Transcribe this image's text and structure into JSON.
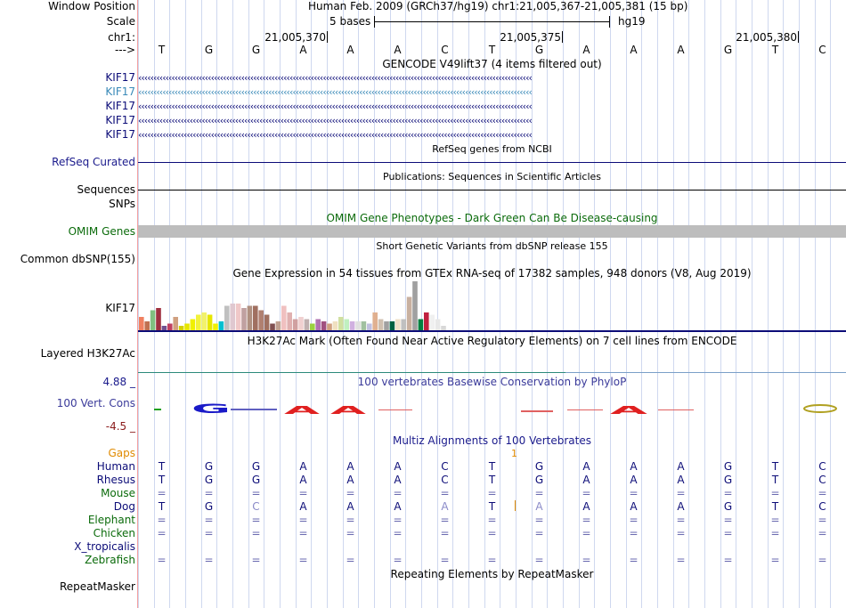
{
  "header": {
    "window_position_label": "Window Position",
    "window_position_value": "Human Feb. 2009 (GRCh37/hg19)   chr1:21,005,367-21,005,381 (15 bp)",
    "scale_label": "Scale",
    "scale_text": "5 bases",
    "scale_assembly": "hg19",
    "chrom_label": "chr1:",
    "strand_label": "--->",
    "coords": [
      "21,005,370",
      "21,005,375",
      "21,005,380"
    ],
    "bases": [
      "T",
      "G",
      "G",
      "A",
      "A",
      "A",
      "C",
      "T",
      "G",
      "A",
      "A",
      "A",
      "G",
      "T",
      "C"
    ]
  },
  "tracks": {
    "gencode": {
      "title": "GENCODE V49lift37 (4 items filtered out)",
      "items": [
        "KIF17",
        "KIF17",
        "KIF17",
        "KIF17",
        "KIF17"
      ],
      "colors": [
        "#0c0c78",
        "#3a8ab8",
        "#0c0c78",
        "#0c0c78",
        "#0c0c78"
      ]
    },
    "refseq": {
      "title": "RefSeq genes from NCBI",
      "label": "RefSeq Curated"
    },
    "pubs": {
      "title": "Publications: Sequences in Scientific Articles",
      "label": "Sequences"
    },
    "snps_label": "SNPs",
    "omim": {
      "title": "OMIM Gene Phenotypes - Dark Green Can Be Disease-causing",
      "label": "OMIM Genes"
    },
    "dbsnp": {
      "title": "Short Genetic Variants from dbSNP release 155",
      "label": "Common dbSNP(155)"
    },
    "gtex": {
      "title": "Gene Expression in 54 tissues from GTEx RNA-seq of 17382 samples, 948 donors (V8, Aug 2019)",
      "label": "KIF17"
    },
    "h3k27ac": {
      "title": "H3K27Ac Mark (Often Found Near Active Regulatory Elements) on 7 cell lines from ENCODE",
      "label": "Layered H3K27Ac"
    },
    "phylop": {
      "title": "100 vertebrates Basewise Conservation by PhyloP",
      "label": "100 Vert. Cons",
      "max": "4.88 _",
      "min": "-4.5 _"
    },
    "multiz": {
      "title": "Multiz Alignments of 100 Vertebrates",
      "gaps_label": "Gaps",
      "gap_count": "1",
      "species": [
        {
          "name": "Human",
          "color": "#0c0c78",
          "seq": [
            "T",
            "G",
            "G",
            "A",
            "A",
            "A",
            "C",
            "T",
            "G",
            "A",
            "A",
            "A",
            "G",
            "T",
            "C"
          ]
        },
        {
          "name": "Rhesus",
          "color": "#0c0c78",
          "seq": [
            "T",
            "G",
            "G",
            "A",
            "A",
            "A",
            "C",
            "T",
            "G",
            "A",
            "A",
            "A",
            "G",
            "T",
            "C"
          ]
        },
        {
          "name": "Mouse",
          "color": "#0b6b0b",
          "seq": [
            "=",
            "=",
            "=",
            "=",
            "=",
            "=",
            "=",
            "=",
            "=",
            "=",
            "=",
            "=",
            "=",
            "=",
            "="
          ]
        },
        {
          "name": "Dog",
          "color": "#0c0c78",
          "seq": [
            "T",
            "G",
            "C",
            "A",
            "A",
            "A",
            "A",
            "T",
            "A",
            "A",
            "A",
            "A",
            "G",
            "T",
            "C"
          ]
        },
        {
          "name": "Elephant",
          "color": "#0b6b0b",
          "seq": [
            "=",
            "=",
            "=",
            "=",
            "=",
            "=",
            "=",
            "=",
            "=",
            "=",
            "=",
            "=",
            "=",
            "=",
            "="
          ]
        },
        {
          "name": "Chicken",
          "color": "#0b6b0b",
          "seq": [
            "=",
            "=",
            "=",
            "=",
            "=",
            "=",
            "=",
            "=",
            "=",
            "=",
            "=",
            "=",
            "=",
            "=",
            "="
          ]
        },
        {
          "name": "X_tropicalis",
          "color": "#0c0c78",
          "seq": [
            "",
            "",
            "",
            "",
            "",
            "",
            "",
            "",
            "",
            "",
            "",
            "",
            "",
            "",
            ""
          ]
        },
        {
          "name": "Zebrafish",
          "color": "#0b6b0b",
          "seq": [
            "=",
            "=",
            "=",
            "=",
            "=",
            "=",
            "=",
            "=",
            "=",
            "=",
            "=",
            "=",
            "=",
            "=",
            "="
          ]
        }
      ]
    },
    "repeatmasker": {
      "title": "Repeating Elements by RepeatMasker",
      "label": "RepeatMasker"
    }
  },
  "chart_data": {
    "type": "bar",
    "title": "Gene Expression in 54 tissues from GTEx RNA-seq of 17382 samples, 948 donors (V8, Aug 2019)",
    "gene": "KIF17",
    "values": [
      6,
      4,
      9,
      10,
      2,
      3,
      6,
      2,
      3,
      5,
      7,
      8,
      7,
      3,
      4,
      11,
      12,
      12,
      10,
      11,
      11,
      9,
      7,
      3,
      4,
      11,
      8,
      5,
      6,
      5,
      3,
      5,
      4,
      3,
      4,
      6,
      5,
      4,
      4,
      4,
      3,
      8,
      5,
      4,
      4,
      5,
      5,
      15,
      22,
      5,
      8,
      7,
      5,
      2
    ],
    "colors": [
      "#f08060",
      "#c07050",
      "#80c080",
      "#a03040",
      "#705090",
      "#c04060",
      "#d0a080",
      "#d4d000",
      "#e6e600",
      "#f0f000",
      "#f2f23a",
      "#f2f26a",
      "#e6e600",
      "#f0f000",
      "#00c0d0",
      "#c0c0c0",
      "#e0c8d0",
      "#f0c8c8",
      "#c0a0a0",
      "#b09080",
      "#a07060",
      "#b08070",
      "#a07060",
      "#805050",
      "#c0a090",
      "#f0c0c0",
      "#e0b0b0",
      "#d0a0a0",
      "#f0d0d0",
      "#c0b0b0",
      "#9ad040",
      "#b070b0",
      "#a05080",
      "#d0a080",
      "#f0e0c0",
      "#d0e0a0",
      "#c0f0c0",
      "#d0b0e0",
      "#e0e0e0",
      "#a0c0a0",
      "#c0c0e0",
      "#e0b090",
      "#d0c0b0",
      "#a0a0a0",
      "#006040",
      "#f0e0c8",
      "#c0c0c0",
      "#c8b0a0",
      "#a0a0a0",
      "#008040",
      "#c02040",
      "#f0f0f0",
      "#e8e8e8",
      "#d8d8d8"
    ]
  }
}
